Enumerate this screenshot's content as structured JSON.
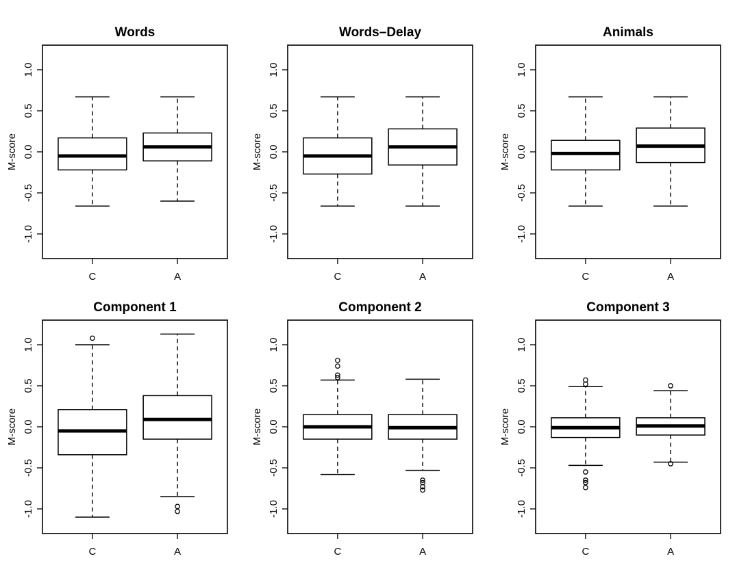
{
  "chart_data": [
    {
      "type": "boxplot",
      "title": "Words",
      "ylabel": "M-score",
      "categories": [
        "C",
        "A"
      ],
      "ylim": [
        -1.3,
        1.3
      ],
      "yticks": [
        "-1.0",
        "-0.5",
        "0.0",
        "0.5",
        "1.0"
      ],
      "boxes": [
        {
          "whisker_low": -0.66,
          "q1": -0.22,
          "median": -0.05,
          "q3": 0.17,
          "whisker_high": 0.67,
          "outliers": []
        },
        {
          "whisker_low": -0.6,
          "q1": -0.11,
          "median": 0.06,
          "q3": 0.23,
          "whisker_high": 0.67,
          "outliers": []
        }
      ]
    },
    {
      "type": "boxplot",
      "title": "Words–Delay",
      "ylabel": "M-score",
      "categories": [
        "C",
        "A"
      ],
      "ylim": [
        -1.3,
        1.3
      ],
      "yticks": [
        "-1.0",
        "-0.5",
        "0.0",
        "0.5",
        "1.0"
      ],
      "boxes": [
        {
          "whisker_low": -0.66,
          "q1": -0.27,
          "median": -0.05,
          "q3": 0.17,
          "whisker_high": 0.67,
          "outliers": []
        },
        {
          "whisker_low": -0.66,
          "q1": -0.16,
          "median": 0.06,
          "q3": 0.28,
          "whisker_high": 0.67,
          "outliers": []
        }
      ]
    },
    {
      "type": "boxplot",
      "title": "Animals",
      "ylabel": "M-score",
      "categories": [
        "C",
        "A"
      ],
      "ylim": [
        -1.3,
        1.3
      ],
      "yticks": [
        "-1.0",
        "-0.5",
        "0.0",
        "0.5",
        "1.0"
      ],
      "boxes": [
        {
          "whisker_low": -0.66,
          "q1": -0.22,
          "median": -0.02,
          "q3": 0.14,
          "whisker_high": 0.67,
          "outliers": []
        },
        {
          "whisker_low": -0.66,
          "q1": -0.13,
          "median": 0.07,
          "q3": 0.29,
          "whisker_high": 0.67,
          "outliers": []
        }
      ]
    },
    {
      "type": "boxplot",
      "title": "Component 1",
      "ylabel": "M-score",
      "categories": [
        "C",
        "A"
      ],
      "ylim": [
        -1.3,
        1.3
      ],
      "yticks": [
        "-1.0",
        "-0.5",
        "0.0",
        "0.5",
        "1.0"
      ],
      "boxes": [
        {
          "whisker_low": -1.1,
          "q1": -0.34,
          "median": -0.05,
          "q3": 0.21,
          "whisker_high": 1.0,
          "outliers": [
            1.08
          ]
        },
        {
          "whisker_low": -0.85,
          "q1": -0.15,
          "median": 0.09,
          "q3": 0.38,
          "whisker_high": 1.13,
          "outliers": [
            -0.97,
            -1.03
          ]
        }
      ]
    },
    {
      "type": "boxplot",
      "title": "Component 2",
      "ylabel": "M-score",
      "categories": [
        "C",
        "A"
      ],
      "ylim": [
        -1.3,
        1.3
      ],
      "yticks": [
        "-1.0",
        "-0.5",
        "0.0",
        "0.5",
        "1.0"
      ],
      "boxes": [
        {
          "whisker_low": -0.58,
          "q1": -0.15,
          "median": 0.0,
          "q3": 0.15,
          "whisker_high": 0.57,
          "outliers": [
            0.6,
            0.63,
            0.74,
            0.81
          ]
        },
        {
          "whisker_low": -0.53,
          "q1": -0.15,
          "median": -0.01,
          "q3": 0.15,
          "whisker_high": 0.58,
          "outliers": [
            -0.65,
            -0.68,
            -0.73,
            -0.77
          ]
        }
      ]
    },
    {
      "type": "boxplot",
      "title": "Component 3",
      "ylabel": "M-score",
      "categories": [
        "C",
        "A"
      ],
      "ylim": [
        -1.3,
        1.3
      ],
      "yticks": [
        "-1.0",
        "-0.5",
        "0.0",
        "0.5",
        "1.0"
      ],
      "boxes": [
        {
          "whisker_low": -0.47,
          "q1": -0.13,
          "median": -0.01,
          "q3": 0.11,
          "whisker_high": 0.49,
          "outliers": [
            0.52,
            0.57,
            -0.55,
            -0.65,
            -0.68,
            -0.74
          ]
        },
        {
          "whisker_low": -0.43,
          "q1": -0.1,
          "median": 0.01,
          "q3": 0.11,
          "whisker_high": 0.44,
          "outliers": [
            0.5,
            -0.45
          ]
        }
      ]
    }
  ]
}
